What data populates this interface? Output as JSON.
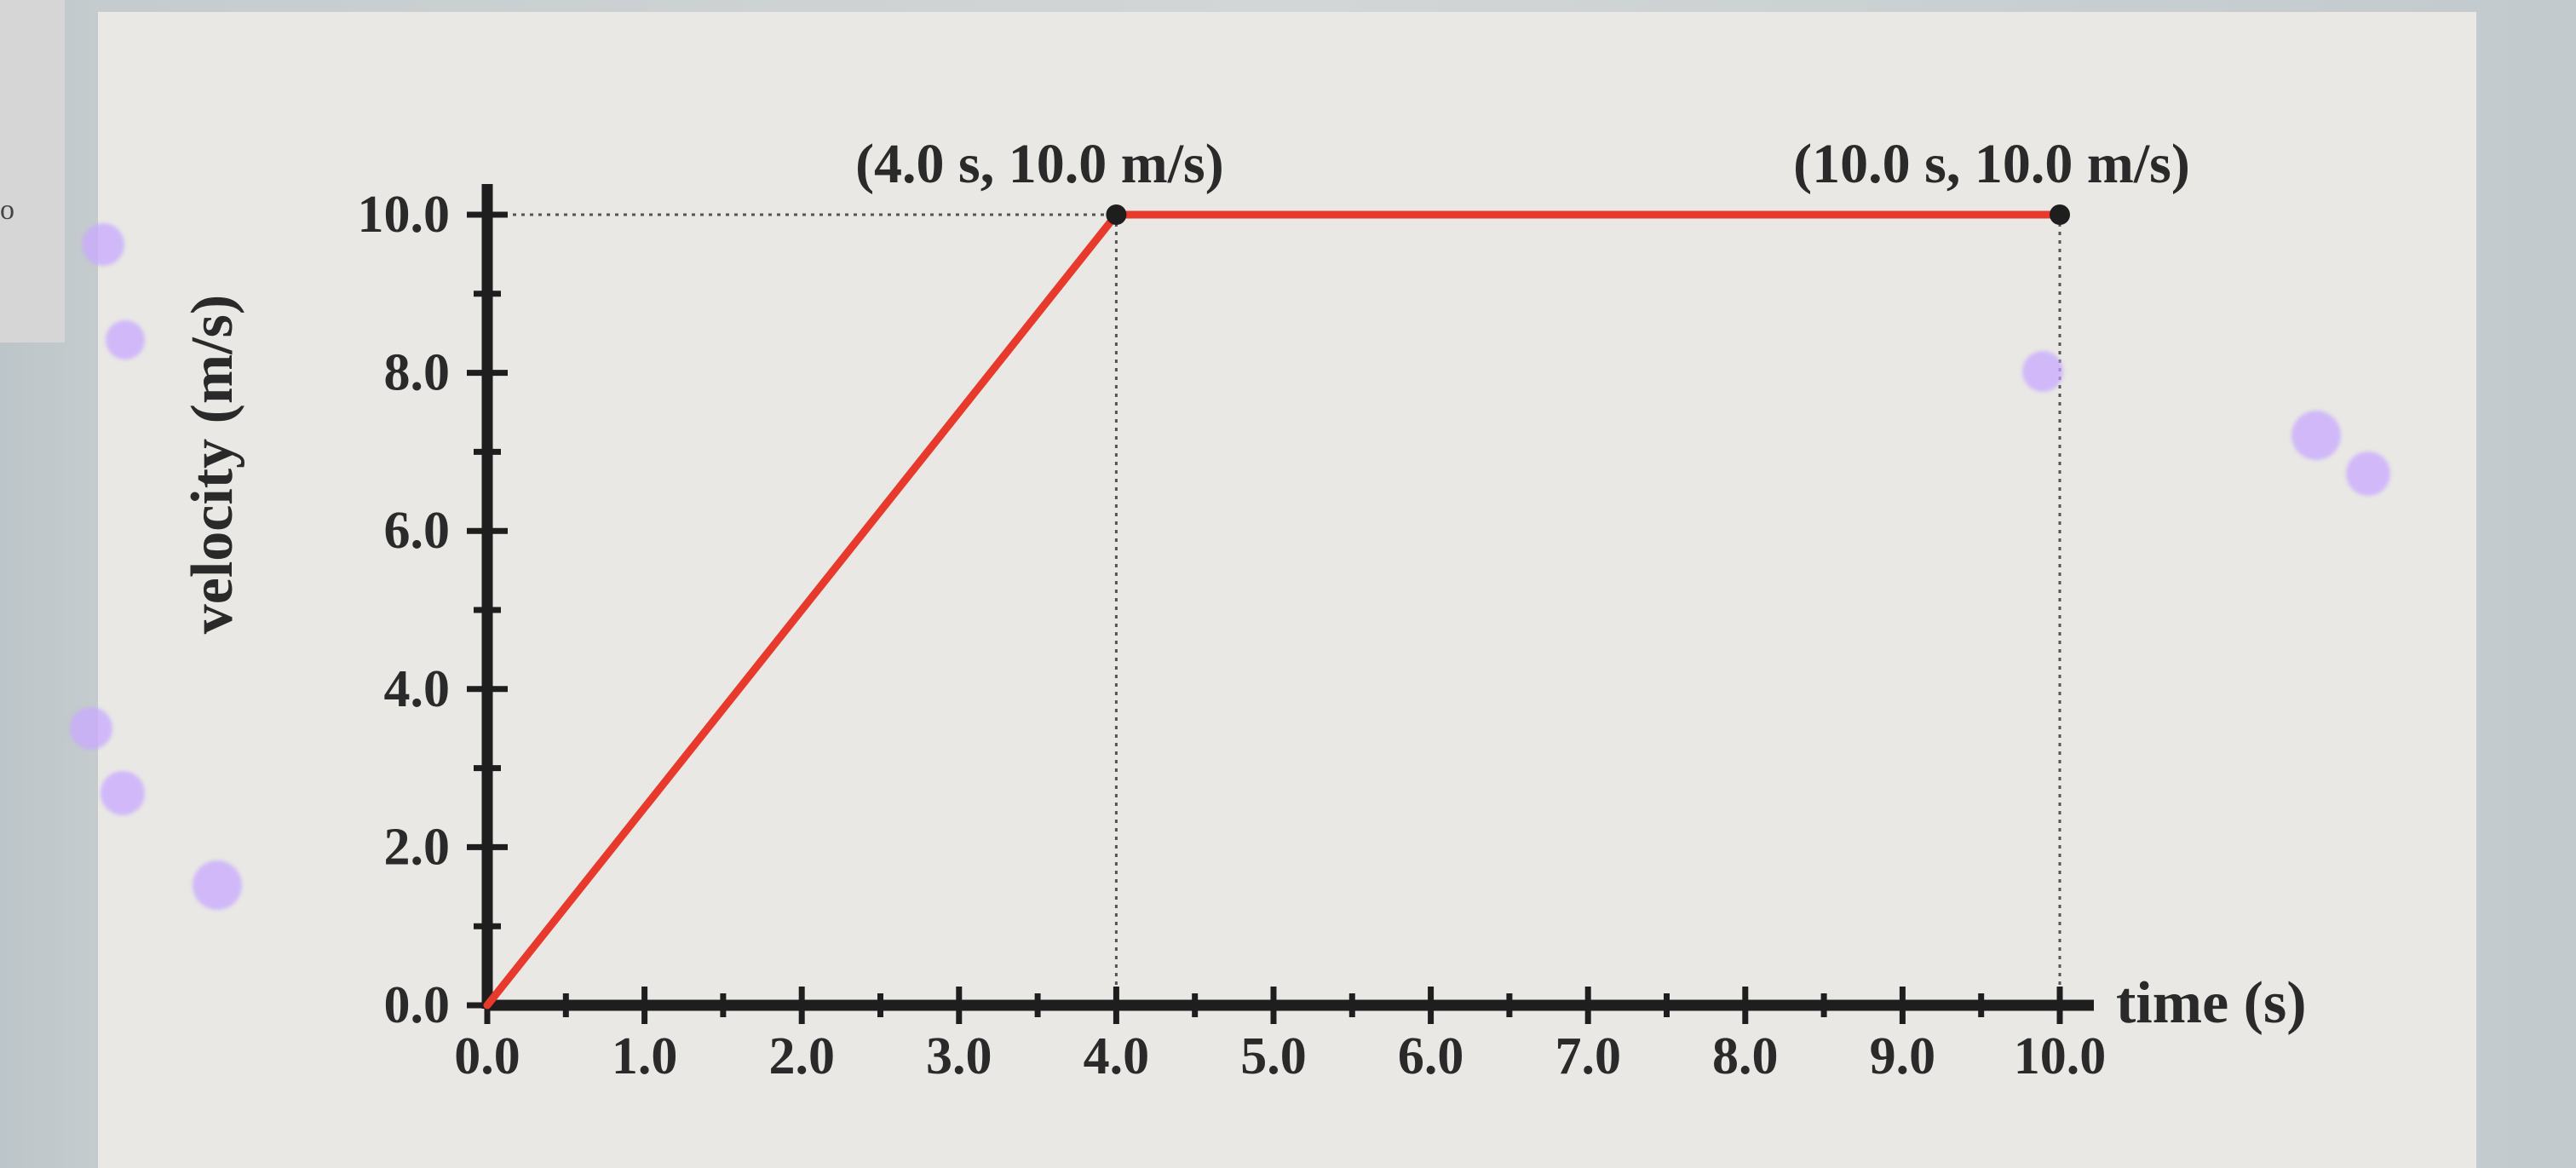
{
  "left_panel": {
    "mark": "o"
  },
  "chart_data": {
    "type": "line",
    "x": [
      0.0,
      4.0,
      10.0
    ],
    "series": [
      {
        "values": [
          0.0,
          10.0,
          10.0
        ]
      }
    ],
    "xlabel": "time (s)",
    "ylabel": "velocity (m/s)",
    "xlim": [
      0.0,
      10.0
    ],
    "ylim": [
      0.0,
      10.0
    ],
    "x_ticks": [
      "0.0",
      "1.0",
      "2.0",
      "3.0",
      "4.0",
      "5.0",
      "6.0",
      "7.0",
      "8.0",
      "9.0",
      "10.0"
    ],
    "y_ticks": [
      "0.0",
      "2.0",
      "4.0",
      "6.0",
      "8.0",
      "10.0"
    ],
    "annotations": [
      {
        "text": "(4.0 s, 10.0 m/s)",
        "x": 4.0,
        "y": 10.0
      },
      {
        "text": "(10.0 s, 10.0 m/s)",
        "x": 10.0,
        "y": 10.0
      }
    ],
    "grid": false,
    "line_color": "#e8392d"
  }
}
